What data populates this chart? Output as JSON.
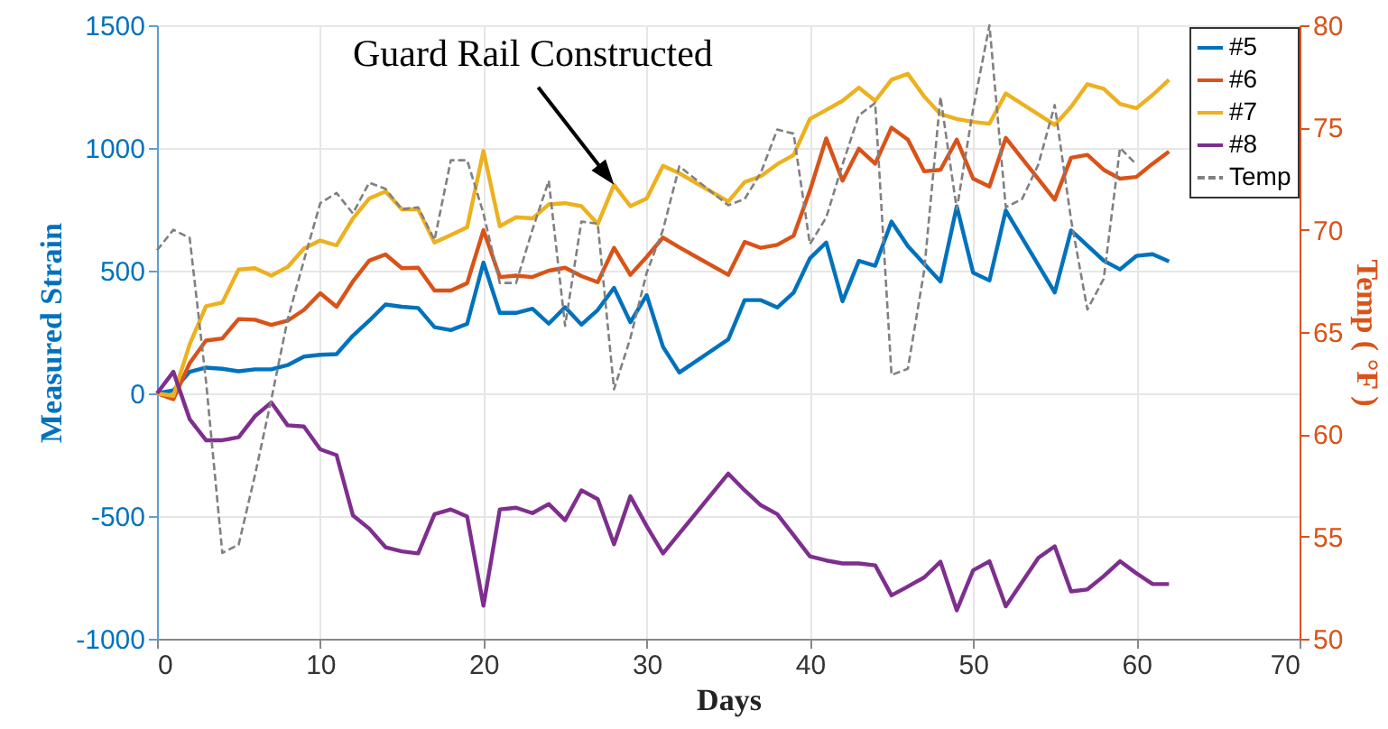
{
  "chart_data": {
    "type": "line",
    "xlabel": "Days",
    "ylabel": "Measured Strain",
    "y2label": "Temp ( °F )",
    "xlim": [
      0,
      70
    ],
    "xticks": [
      0,
      10,
      20,
      30,
      40,
      50,
      60,
      70
    ],
    "ylim": [
      -1000,
      1500
    ],
    "yticks": [
      -1000,
      -500,
      0,
      500,
      1000,
      1500
    ],
    "y2lim": [
      50,
      80
    ],
    "y2ticks": [
      50,
      55,
      60,
      65,
      70,
      75,
      80
    ],
    "grid": true,
    "legend": "top right",
    "annotations": [
      {
        "text": "Guard Rail Constructed",
        "x": 28,
        "y": 850
      }
    ],
    "series": [
      {
        "name": "#5",
        "color": "#0072bd",
        "line_style": "solid",
        "x": [
          0,
          1,
          2,
          3,
          4,
          5,
          6,
          7,
          8,
          9,
          10,
          11,
          12,
          13,
          14,
          15,
          16,
          17,
          18,
          19,
          20,
          21,
          22,
          23,
          24,
          25,
          26,
          27,
          28,
          29,
          30,
          31,
          32,
          35,
          36,
          37,
          38,
          39,
          40,
          41,
          42,
          43,
          44,
          45,
          46,
          48,
          49,
          50,
          51,
          52,
          55,
          56,
          58,
          59,
          60,
          61,
          62
        ],
        "values": [
          0,
          12,
          88,
          105,
          100,
          90,
          98,
          98,
          115,
          150,
          157,
          160,
          235,
          296,
          362,
          353,
          348,
          270,
          258,
          283,
          533,
          328,
          328,
          345,
          284,
          351,
          280,
          340,
          430,
          290,
          400,
          190,
          85,
          220,
          380,
          380,
          350,
          410,
          550,
          615,
          375,
          540,
          520,
          700,
          600,
          456,
          762,
          492,
          460,
          745,
          411,
          664,
          541,
          505,
          560,
          567,
          538
        ]
      },
      {
        "name": "#6",
        "color": "#d95319",
        "line_style": "solid",
        "x": [
          0,
          1,
          2,
          3,
          4,
          5,
          6,
          7,
          8,
          9,
          10,
          11,
          12,
          13,
          14,
          15,
          16,
          17,
          18,
          19,
          20,
          21,
          22,
          23,
          24,
          25,
          26,
          27,
          28,
          29,
          30,
          31,
          32,
          35,
          36,
          37,
          38,
          39,
          40,
          41,
          42,
          43,
          44,
          45,
          46,
          47,
          48,
          49,
          50,
          51,
          52,
          55,
          56,
          57,
          58,
          59,
          60,
          61,
          62
        ],
        "values": [
          0,
          -24,
          123,
          215,
          224,
          303,
          300,
          279,
          296,
          340,
          408,
          353,
          456,
          541,
          566,
          510,
          512,
          419,
          419,
          449,
          665,
          474,
          480,
          474,
          500,
          512,
          478,
          453,
          593,
          483,
          556,
          635,
          595,
          483,
          617,
          593,
          605,
          642,
          826,
          1039,
          867,
          997,
          936,
          1083,
          1034,
          905,
          911,
          1034,
          875,
          843,
          1041,
          789,
          960,
          972,
          911,
          875,
          882,
          936,
          985
        ]
      },
      {
        "name": "#7",
        "color": "#edb120",
        "line_style": "solid",
        "x": [
          0,
          1,
          2,
          3,
          4,
          5,
          6,
          7,
          8,
          9,
          10,
          11,
          12,
          13,
          14,
          15,
          16,
          17,
          18,
          19,
          20,
          21,
          22,
          23,
          24,
          25,
          26,
          27,
          28,
          29,
          30,
          31,
          32,
          35,
          36,
          37,
          38,
          39,
          40,
          41,
          42,
          43,
          44,
          45,
          46,
          47,
          48,
          49,
          50,
          51,
          52,
          55,
          56,
          57,
          58,
          59,
          60,
          61,
          62
        ],
        "values": [
          0,
          -10,
          200,
          355,
          370,
          505,
          510,
          480,
          515,
          590,
          623,
          603,
          713,
          794,
          823,
          750,
          750,
          615,
          645,
          677,
          988,
          681,
          718,
          713,
          770,
          775,
          763,
          690,
          850,
          763,
          794,
          927,
          897,
          782,
          861,
          885,
          934,
          971,
          1118,
          1155,
          1192,
          1246,
          1192,
          1278,
          1302,
          1210,
          1138,
          1118,
          1106,
          1099,
          1222,
          1094,
          1167,
          1260,
          1241,
          1180,
          1162,
          1216,
          1278
        ]
      },
      {
        "name": "#8",
        "color": "#7e2f8e",
        "line_style": "solid",
        "x": [
          0,
          1,
          2,
          3,
          4,
          5,
          6,
          7,
          8,
          9,
          10,
          11,
          12,
          13,
          14,
          15,
          16,
          17,
          18,
          19,
          20,
          21,
          22,
          23,
          24,
          25,
          26,
          27,
          28,
          29,
          30,
          31,
          35,
          36,
          37,
          38,
          39,
          40,
          41,
          42,
          43,
          44,
          45,
          46,
          47,
          48,
          49,
          50,
          51,
          52,
          54,
          55,
          56,
          57,
          58,
          59,
          60,
          61,
          62
        ],
        "values": [
          0,
          88,
          -105,
          -191,
          -191,
          -179,
          -93,
          -37,
          -130,
          -135,
          -228,
          -252,
          -497,
          -551,
          -627,
          -644,
          -652,
          -492,
          -473,
          -502,
          -865,
          -473,
          -466,
          -488,
          -451,
          -517,
          -395,
          -431,
          -615,
          -419,
          -541,
          -652,
          -327,
          -395,
          -456,
          -492,
          -578,
          -664,
          -681,
          -693,
          -693,
          -701,
          -823,
          -787,
          -750,
          -686,
          -884,
          -721,
          -684,
          -868,
          -670,
          -623,
          -807,
          -799,
          -745,
          -684,
          -733,
          -777,
          -777
        ]
      },
      {
        "name": "Temp",
        "color": "#808080",
        "line_style": "dashed",
        "axis": "y2",
        "x": [
          0,
          1,
          2,
          3,
          4,
          5,
          6,
          7,
          8,
          9,
          10,
          11,
          12,
          13,
          14,
          15,
          16,
          17,
          18,
          19,
          20,
          21,
          22,
          23,
          24,
          25,
          26,
          27,
          28,
          29,
          30,
          31,
          32,
          35,
          36,
          37,
          38,
          39,
          40,
          41,
          42,
          43,
          44,
          45,
          46,
          47,
          48,
          49,
          50,
          51,
          52,
          53,
          54,
          55,
          56,
          57,
          58,
          59,
          60
        ],
        "values": [
          69.0,
          70.0,
          69.6,
          62.6,
          54.2,
          54.6,
          58.0,
          61.7,
          65.6,
          68.5,
          71.3,
          71.8,
          70.8,
          72.3,
          72.0,
          71.0,
          71.1,
          69.5,
          73.4,
          73.4,
          70.8,
          67.4,
          67.4,
          70.0,
          72.4,
          65.3,
          70.4,
          70.3,
          62.2,
          64.7,
          67.9,
          70.0,
          73.1,
          71.2,
          71.5,
          72.8,
          74.9,
          74.7,
          69.3,
          70.6,
          73.2,
          75.6,
          76.2,
          62.9,
          63.2,
          68.0,
          76.5,
          71.0,
          75.9,
          80.0,
          71.1,
          71.5,
          73.2,
          76.1,
          70.5,
          66.1,
          67.6,
          74.0,
          73.2
        ]
      }
    ]
  }
}
